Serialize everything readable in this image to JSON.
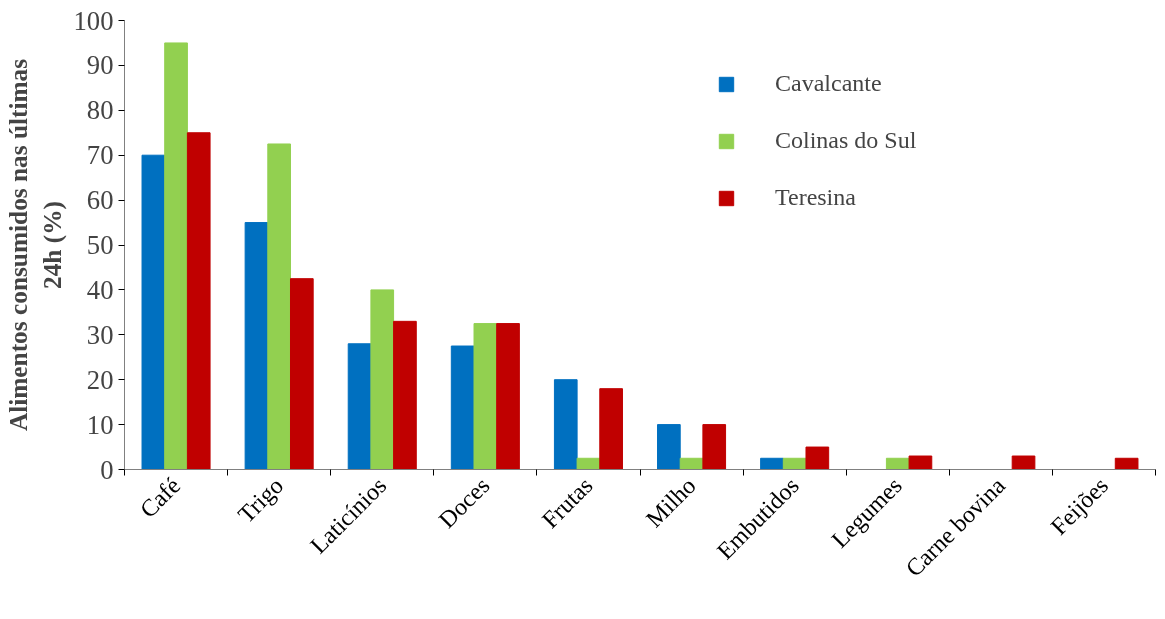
{
  "chart_data": {
    "type": "bar",
    "ylabel": "Alimentos consumidos nas últimas\n24h (%)",
    "categories": [
      "Café",
      "Trigo",
      "Laticínios",
      "Doces",
      "Frutas",
      "Milho",
      "Embutidos",
      "Legumes",
      "Carne bovina",
      "Feijões"
    ],
    "series": [
      {
        "name": "Cavalcante",
        "color": "#0070c0",
        "values": [
          70,
          55,
          28,
          27.5,
          20,
          10,
          2.5,
          0,
          0,
          0
        ]
      },
      {
        "name": "Colinas do Sul",
        "color": "#92d050",
        "values": [
          95,
          72.5,
          40,
          32.5,
          2.5,
          2.5,
          2.5,
          2.5,
          0,
          0
        ]
      },
      {
        "name": "Teresina",
        "color": "#c00000",
        "values": [
          75,
          42.5,
          33,
          32.5,
          18,
          10,
          5,
          3,
          3,
          2.5
        ]
      }
    ],
    "ylim": [
      0,
      100
    ],
    "yticks": [
      0,
      10,
      20,
      30,
      40,
      50,
      60,
      70,
      80,
      90,
      100
    ],
    "grid": false,
    "legend": "top right"
  }
}
